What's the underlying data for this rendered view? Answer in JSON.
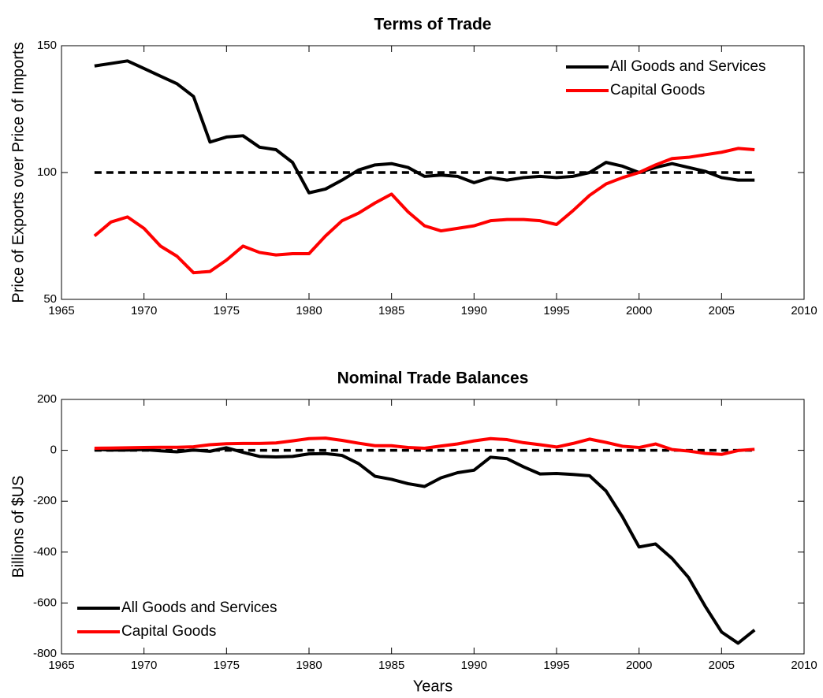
{
  "chart_data": [
    {
      "type": "line",
      "title": "Terms of Trade",
      "y_label": "Price of Exports over Price of Imports",
      "x": [
        1967,
        1968,
        1969,
        1970,
        1971,
        1972,
        1973,
        1974,
        1975,
        1976,
        1977,
        1978,
        1979,
        1980,
        1981,
        1982,
        1983,
        1984,
        1985,
        1986,
        1987,
        1988,
        1989,
        1990,
        1991,
        1992,
        1993,
        1994,
        1995,
        1996,
        1997,
        1998,
        1999,
        2000,
        2001,
        2002,
        2003,
        2004,
        2005,
        2006,
        2007
      ],
      "series": [
        {
          "name": "All Goods and Services",
          "color": "#000000",
          "values": [
            142,
            143,
            144,
            141,
            138,
            135,
            130,
            112,
            114,
            114.5,
            110,
            109,
            104,
            92,
            93.5,
            97,
            101,
            103,
            103.5,
            102,
            98.5,
            99,
            98.5,
            96,
            98,
            97,
            98,
            98.5,
            98,
            98.5,
            100,
            104,
            102.5,
            100,
            102,
            103.5,
            102,
            100.5,
            98,
            97,
            97
          ]
        },
        {
          "name": "Capital Goods",
          "color": "#ff0000",
          "values": [
            75,
            80.5,
            82.5,
            78,
            71,
            67,
            60.5,
            61,
            65.5,
            71,
            68.5,
            67.5,
            68,
            68,
            75,
            81,
            84,
            88,
            91.5,
            84.5,
            79,
            77,
            78,
            79,
            81,
            81.5,
            81.5,
            81,
            79.5,
            85,
            91,
            95.5,
            98,
            100,
            103,
            105.5,
            106,
            107,
            108,
            109.5,
            109
          ]
        }
      ],
      "reference_line": 100,
      "xlim": [
        1965,
        2010
      ],
      "xticks": [
        1965,
        1970,
        1975,
        1980,
        1985,
        1990,
        1995,
        2000,
        2005,
        2010
      ],
      "ylim": [
        50,
        150
      ],
      "yticks": [
        50,
        100,
        150
      ],
      "legend": "upper-right"
    },
    {
      "type": "line",
      "title": "Nominal Trade Balances",
      "y_label": "Billions of $US",
      "x_label": "Years",
      "x": [
        1967,
        1968,
        1969,
        1970,
        1971,
        1972,
        1973,
        1974,
        1975,
        1976,
        1977,
        1978,
        1979,
        1980,
        1981,
        1982,
        1983,
        1984,
        1985,
        1986,
        1987,
        1988,
        1989,
        1990,
        1991,
        1992,
        1993,
        1994,
        1995,
        1996,
        1997,
        1998,
        1999,
        2000,
        2001,
        2002,
        2003,
        2004,
        2005,
        2006,
        2007
      ],
      "series": [
        {
          "name": "All Goods and Services",
          "color": "#000000",
          "values": [
            4,
            1,
            1,
            3,
            -2,
            -6,
            1,
            -4,
            10,
            -8,
            -24,
            -26,
            -24,
            -14,
            -13,
            -20,
            -52,
            -102,
            -114,
            -131,
            -142,
            -108,
            -88,
            -78,
            -27,
            -33,
            -65,
            -93,
            -91,
            -95,
            -100,
            -160,
            -262,
            -380,
            -368,
            -425,
            -500,
            -612,
            -714,
            -758,
            -706
          ]
        },
        {
          "name": "Capital Goods",
          "color": "#ff0000",
          "values": [
            8,
            9,
            10,
            11,
            12,
            12,
            14,
            22,
            26,
            27,
            27,
            29,
            37,
            46,
            48,
            39,
            28,
            18,
            18,
            11,
            8,
            17,
            25,
            37,
            46,
            42,
            30,
            22,
            13,
            27,
            44,
            31,
            16,
            11,
            25,
            3,
            -3,
            -12,
            -16,
            -1,
            4
          ]
        }
      ],
      "reference_line": 0,
      "xlim": [
        1965,
        2010
      ],
      "xticks": [
        1965,
        1970,
        1975,
        1980,
        1985,
        1990,
        1995,
        2000,
        2005,
        2010
      ],
      "ylim": [
        -800,
        200
      ],
      "yticks": [
        -800,
        -600,
        -400,
        -200,
        0,
        200
      ],
      "legend": "lower-left"
    }
  ]
}
